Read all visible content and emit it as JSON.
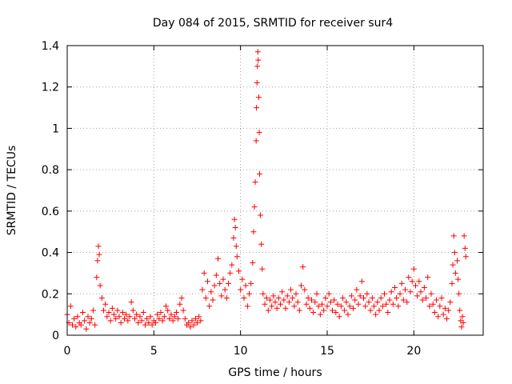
{
  "chart_data": {
    "type": "scatter",
    "title": "Day 084 of 2015, SRMTID for receiver sur4",
    "xlabel": "GPS time / hours",
    "ylabel": "SRMTID / TECUs",
    "xlim": [
      0,
      24
    ],
    "ylim": [
      0,
      1.4
    ],
    "grid": true,
    "marker": "plus",
    "x_ticks": [
      0,
      5,
      10,
      15,
      20
    ],
    "x_tick_labels": [
      "0",
      "5",
      "10",
      "15",
      "20"
    ],
    "y_ticks": [
      0,
      0.2,
      0.4,
      0.6,
      0.8,
      1.0,
      1.2,
      1.4
    ],
    "y_tick_labels": [
      "0",
      "0.2",
      "0.4",
      "0.6",
      "0.8",
      "1",
      "1.2",
      "1.4"
    ],
    "series": [
      {
        "name": "sur4",
        "color": "#ff0000",
        "points": [
          [
            0.0,
            0.1
          ],
          [
            0.1,
            0.06
          ],
          [
            0.2,
            0.14
          ],
          [
            0.3,
            0.05
          ],
          [
            0.4,
            0.08
          ],
          [
            0.5,
            0.04
          ],
          [
            0.6,
            0.09
          ],
          [
            0.7,
            0.06
          ],
          [
            0.8,
            0.05
          ],
          [
            0.9,
            0.11
          ],
          [
            1.0,
            0.07
          ],
          [
            1.1,
            0.03
          ],
          [
            1.2,
            0.09
          ],
          [
            1.3,
            0.06
          ],
          [
            1.4,
            0.08
          ],
          [
            1.5,
            0.12
          ],
          [
            1.6,
            0.05
          ],
          [
            1.7,
            0.28
          ],
          [
            1.75,
            0.36
          ],
          [
            1.8,
            0.43
          ],
          [
            1.85,
            0.39
          ],
          [
            1.9,
            0.24
          ],
          [
            2.0,
            0.18
          ],
          [
            2.1,
            0.12
          ],
          [
            2.2,
            0.15
          ],
          [
            2.3,
            0.09
          ],
          [
            2.4,
            0.11
          ],
          [
            2.5,
            0.07
          ],
          [
            2.6,
            0.13
          ],
          [
            2.7,
            0.1
          ],
          [
            2.8,
            0.08
          ],
          [
            2.9,
            0.12
          ],
          [
            3.0,
            0.09
          ],
          [
            3.1,
            0.06
          ],
          [
            3.2,
            0.11
          ],
          [
            3.3,
            0.08
          ],
          [
            3.4,
            0.1
          ],
          [
            3.5,
            0.07
          ],
          [
            3.6,
            0.09
          ],
          [
            3.7,
            0.16
          ],
          [
            3.8,
            0.12
          ],
          [
            3.9,
            0.08
          ],
          [
            4.0,
            0.1
          ],
          [
            4.1,
            0.06
          ],
          [
            4.2,
            0.09
          ],
          [
            4.3,
            0.07
          ],
          [
            4.4,
            0.11
          ],
          [
            4.5,
            0.05
          ],
          [
            4.6,
            0.08
          ],
          [
            4.7,
            0.06
          ],
          [
            4.8,
            0.09
          ],
          [
            4.9,
            0.05
          ],
          [
            5.0,
            0.07
          ],
          [
            5.1,
            0.06
          ],
          [
            5.2,
            0.1
          ],
          [
            5.3,
            0.08
          ],
          [
            5.4,
            0.11
          ],
          [
            5.5,
            0.07
          ],
          [
            5.6,
            0.09
          ],
          [
            5.7,
            0.14
          ],
          [
            5.8,
            0.12
          ],
          [
            5.9,
            0.08
          ],
          [
            6.0,
            0.1
          ],
          [
            6.1,
            0.07
          ],
          [
            6.2,
            0.09
          ],
          [
            6.3,
            0.11
          ],
          [
            6.4,
            0.08
          ],
          [
            6.5,
            0.15
          ],
          [
            6.6,
            0.18
          ],
          [
            6.7,
            0.12
          ],
          [
            6.8,
            0.08
          ],
          [
            6.9,
            0.05
          ],
          [
            7.0,
            0.06
          ],
          [
            7.1,
            0.04
          ],
          [
            7.2,
            0.07
          ],
          [
            7.3,
            0.05
          ],
          [
            7.4,
            0.08
          ],
          [
            7.5,
            0.06
          ],
          [
            7.6,
            0.09
          ],
          [
            7.7,
            0.07
          ],
          [
            7.8,
            0.22
          ],
          [
            7.9,
            0.3
          ],
          [
            8.0,
            0.18
          ],
          [
            8.1,
            0.26
          ],
          [
            8.2,
            0.14
          ],
          [
            8.3,
            0.21
          ],
          [
            8.4,
            0.17
          ],
          [
            8.5,
            0.24
          ],
          [
            8.6,
            0.29
          ],
          [
            8.7,
            0.37
          ],
          [
            8.8,
            0.25
          ],
          [
            8.9,
            0.19
          ],
          [
            9.0,
            0.27
          ],
          [
            9.1,
            0.22
          ],
          [
            9.2,
            0.18
          ],
          [
            9.3,
            0.25
          ],
          [
            9.4,
            0.3
          ],
          [
            9.5,
            0.34
          ],
          [
            9.6,
            0.47
          ],
          [
            9.65,
            0.56
          ],
          [
            9.7,
            0.52
          ],
          [
            9.75,
            0.43
          ],
          [
            9.8,
            0.38
          ],
          [
            9.9,
            0.31
          ],
          [
            10.0,
            0.22
          ],
          [
            10.1,
            0.27
          ],
          [
            10.2,
            0.18
          ],
          [
            10.3,
            0.24
          ],
          [
            10.4,
            0.14
          ],
          [
            10.5,
            0.2
          ],
          [
            10.6,
            0.25
          ],
          [
            10.7,
            0.35
          ],
          [
            10.75,
            0.5
          ],
          [
            10.8,
            0.62
          ],
          [
            10.85,
            0.74
          ],
          [
            10.9,
            0.94
          ],
          [
            10.92,
            1.1
          ],
          [
            10.95,
            1.22
          ],
          [
            10.97,
            1.3
          ],
          [
            11.0,
            1.37
          ],
          [
            11.02,
            1.33
          ],
          [
            11.05,
            1.15
          ],
          [
            11.08,
            0.98
          ],
          [
            11.1,
            0.78
          ],
          [
            11.15,
            0.58
          ],
          [
            11.2,
            0.44
          ],
          [
            11.25,
            0.32
          ],
          [
            11.3,
            0.2
          ],
          [
            11.4,
            0.15
          ],
          [
            11.5,
            0.18
          ],
          [
            11.6,
            0.12
          ],
          [
            11.7,
            0.17
          ],
          [
            11.8,
            0.14
          ],
          [
            11.9,
            0.19
          ],
          [
            12.0,
            0.16
          ],
          [
            12.1,
            0.13
          ],
          [
            12.2,
            0.18
          ],
          [
            12.3,
            0.15
          ],
          [
            12.4,
            0.21
          ],
          [
            12.5,
            0.17
          ],
          [
            12.6,
            0.13
          ],
          [
            12.7,
            0.19
          ],
          [
            12.8,
            0.16
          ],
          [
            12.9,
            0.22
          ],
          [
            13.0,
            0.18
          ],
          [
            13.1,
            0.14
          ],
          [
            13.2,
            0.2
          ],
          [
            13.3,
            0.16
          ],
          [
            13.4,
            0.12
          ],
          [
            13.5,
            0.24
          ],
          [
            13.6,
            0.33
          ],
          [
            13.7,
            0.22
          ],
          [
            13.8,
            0.15
          ],
          [
            13.9,
            0.18
          ],
          [
            14.0,
            0.13
          ],
          [
            14.1,
            0.17
          ],
          [
            14.2,
            0.11
          ],
          [
            14.3,
            0.16
          ],
          [
            14.4,
            0.2
          ],
          [
            14.5,
            0.14
          ],
          [
            14.6,
            0.1
          ],
          [
            14.7,
            0.15
          ],
          [
            14.8,
            0.12
          ],
          [
            14.9,
            0.18
          ],
          [
            15.0,
            0.14
          ],
          [
            15.1,
            0.2
          ],
          [
            15.2,
            0.16
          ],
          [
            15.3,
            0.12
          ],
          [
            15.4,
            0.17
          ],
          [
            15.5,
            0.11
          ],
          [
            15.6,
            0.15
          ],
          [
            15.7,
            0.09
          ],
          [
            15.8,
            0.14
          ],
          [
            15.9,
            0.18
          ],
          [
            16.0,
            0.12
          ],
          [
            16.1,
            0.16
          ],
          [
            16.2,
            0.1
          ],
          [
            16.3,
            0.14
          ],
          [
            16.4,
            0.19
          ],
          [
            16.5,
            0.13
          ],
          [
            16.6,
            0.17
          ],
          [
            16.7,
            0.22
          ],
          [
            16.8,
            0.15
          ],
          [
            16.9,
            0.19
          ],
          [
            17.0,
            0.26
          ],
          [
            17.1,
            0.18
          ],
          [
            17.2,
            0.14
          ],
          [
            17.3,
            0.2
          ],
          [
            17.4,
            0.16
          ],
          [
            17.5,
            0.12
          ],
          [
            17.6,
            0.18
          ],
          [
            17.7,
            0.14
          ],
          [
            17.8,
            0.1
          ],
          [
            17.9,
            0.16
          ],
          [
            18.0,
            0.12
          ],
          [
            18.1,
            0.18
          ],
          [
            18.2,
            0.14
          ],
          [
            18.3,
            0.2
          ],
          [
            18.4,
            0.15
          ],
          [
            18.5,
            0.11
          ],
          [
            18.6,
            0.17
          ],
          [
            18.7,
            0.21
          ],
          [
            18.8,
            0.15
          ],
          [
            18.9,
            0.23
          ],
          [
            19.0,
            0.18
          ],
          [
            19.1,
            0.14
          ],
          [
            19.2,
            0.2
          ],
          [
            19.3,
            0.25
          ],
          [
            19.4,
            0.17
          ],
          [
            19.5,
            0.22
          ],
          [
            19.6,
            0.16
          ],
          [
            19.7,
            0.28
          ],
          [
            19.8,
            0.21
          ],
          [
            19.9,
            0.26
          ],
          [
            20.0,
            0.32
          ],
          [
            20.1,
            0.24
          ],
          [
            20.2,
            0.19
          ],
          [
            20.3,
            0.26
          ],
          [
            20.4,
            0.21
          ],
          [
            20.5,
            0.17
          ],
          [
            20.6,
            0.23
          ],
          [
            20.7,
            0.18
          ],
          [
            20.8,
            0.28
          ],
          [
            20.9,
            0.14
          ],
          [
            21.0,
            0.2
          ],
          [
            21.1,
            0.15
          ],
          [
            21.2,
            0.11
          ],
          [
            21.3,
            0.17
          ],
          [
            21.4,
            0.09
          ],
          [
            21.5,
            0.14
          ],
          [
            21.6,
            0.18
          ],
          [
            21.7,
            0.1
          ],
          [
            21.8,
            0.13
          ],
          [
            21.9,
            0.08
          ],
          [
            22.0,
            0.12
          ],
          [
            22.1,
            0.16
          ],
          [
            22.2,
            0.25
          ],
          [
            22.25,
            0.34
          ],
          [
            22.3,
            0.48
          ],
          [
            22.35,
            0.4
          ],
          [
            22.4,
            0.3
          ],
          [
            22.5,
            0.36
          ],
          [
            22.55,
            0.27
          ],
          [
            22.6,
            0.2
          ],
          [
            22.65,
            0.12
          ],
          [
            22.7,
            0.07
          ],
          [
            22.75,
            0.04
          ],
          [
            22.8,
            0.09
          ],
          [
            22.85,
            0.06
          ],
          [
            22.9,
            0.48
          ],
          [
            22.95,
            0.42
          ],
          [
            23.0,
            0.38
          ]
        ]
      }
    ]
  }
}
